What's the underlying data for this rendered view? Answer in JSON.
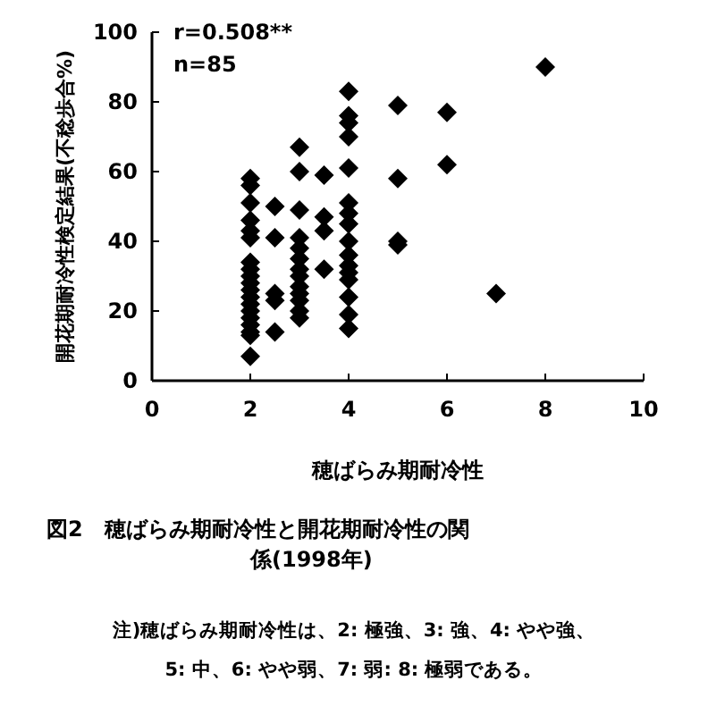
{
  "chart_data": {
    "type": "scatter",
    "title": "図2　穂ばらみ期耐冷性と開花期耐冷性の関係(1998年)",
    "xlabel": "穂ばらみ期耐冷性",
    "ylabel": "開花期耐冷性検定結果(不稔歩合%)",
    "annotations": [
      "r=0.508**",
      "n=85",
      "注)穂ばらみ期耐冷性は、2: 極強、3: 強、4: やや強、5: 中、6: やや弱、7: 弱: 8: 極弱である。"
    ],
    "xlim": [
      0,
      10
    ],
    "xticks": [
      0,
      2,
      4,
      6,
      8,
      10
    ],
    "ylim": [
      0,
      100
    ],
    "yticks": [
      0,
      20,
      40,
      60,
      80,
      100
    ],
    "grid": false,
    "marker": "diamond",
    "series": [
      {
        "color": "#000000",
        "x": [
          2,
          2,
          2,
          2,
          2,
          2,
          2,
          2,
          2,
          2,
          2,
          2,
          2,
          2,
          2,
          2,
          2,
          2,
          2,
          2.5,
          2.5,
          2.5,
          2.5,
          2.5,
          3,
          3,
          3,
          3,
          3,
          3,
          3,
          3,
          3,
          3,
          3,
          3,
          3,
          3.5,
          3.5,
          3.5,
          3.5,
          4,
          4,
          4,
          4,
          4,
          4,
          4,
          4,
          4,
          4,
          4,
          4,
          4,
          4,
          4,
          4,
          5,
          5,
          5,
          5,
          6,
          6,
          7,
          8
        ],
        "values": [
          7,
          13,
          14,
          16,
          18,
          20,
          22,
          24,
          26,
          28,
          30,
          32,
          34,
          41,
          43,
          46,
          51,
          56,
          58,
          14,
          23,
          25,
          41,
          50,
          18,
          20,
          23,
          25,
          27,
          30,
          32,
          35,
          38,
          41,
          49,
          60,
          67,
          32,
          43,
          47,
          59,
          15,
          19,
          24,
          29,
          31,
          33,
          36,
          40,
          45,
          48,
          51,
          61,
          70,
          74,
          76,
          83,
          39,
          40,
          58,
          79,
          62,
          77,
          25,
          90
        ]
      }
    ]
  }
}
